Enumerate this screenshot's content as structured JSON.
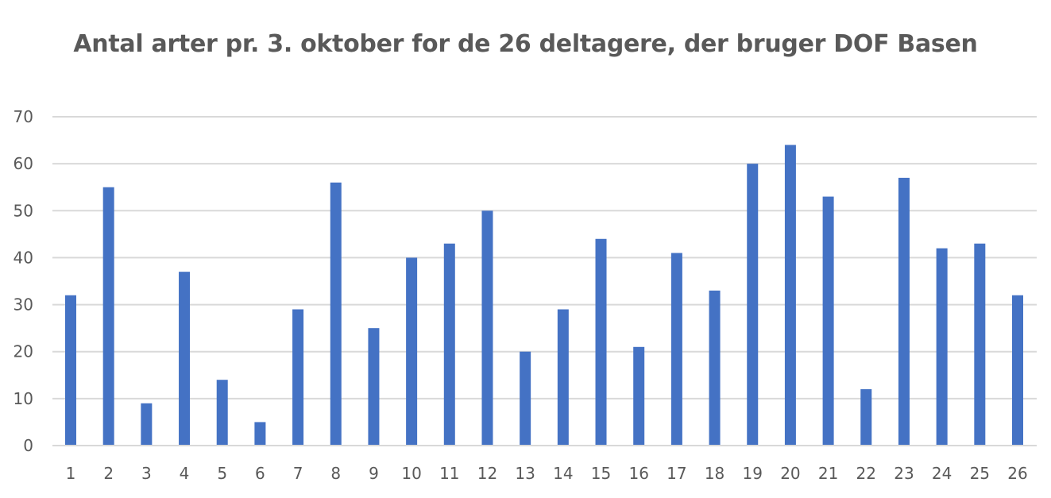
{
  "chart_data": {
    "type": "bar",
    "title": "Antal arter pr. 3. oktober for de 26 deltagere, der bruger DOF Basen",
    "xlabel": "",
    "ylabel": "",
    "categories": [
      "1",
      "2",
      "3",
      "4",
      "5",
      "6",
      "7",
      "8",
      "9",
      "10",
      "11",
      "12",
      "13",
      "14",
      "15",
      "16",
      "17",
      "18",
      "19",
      "20",
      "21",
      "22",
      "23",
      "24",
      "25",
      "26"
    ],
    "values": [
      32,
      55,
      9,
      37,
      14,
      5,
      29,
      56,
      25,
      40,
      43,
      50,
      20,
      29,
      44,
      21,
      41,
      33,
      60,
      64,
      53,
      12,
      57,
      42,
      43,
      32
    ],
    "ylim": [
      0,
      70
    ],
    "yticks": [
      "0",
      "10",
      "20",
      "30",
      "40",
      "50",
      "60",
      "70"
    ],
    "grid": true,
    "legend": "none",
    "colors": {
      "bar": "#4472c4",
      "grid": "#d9d9d9",
      "text": "#595959"
    }
  }
}
